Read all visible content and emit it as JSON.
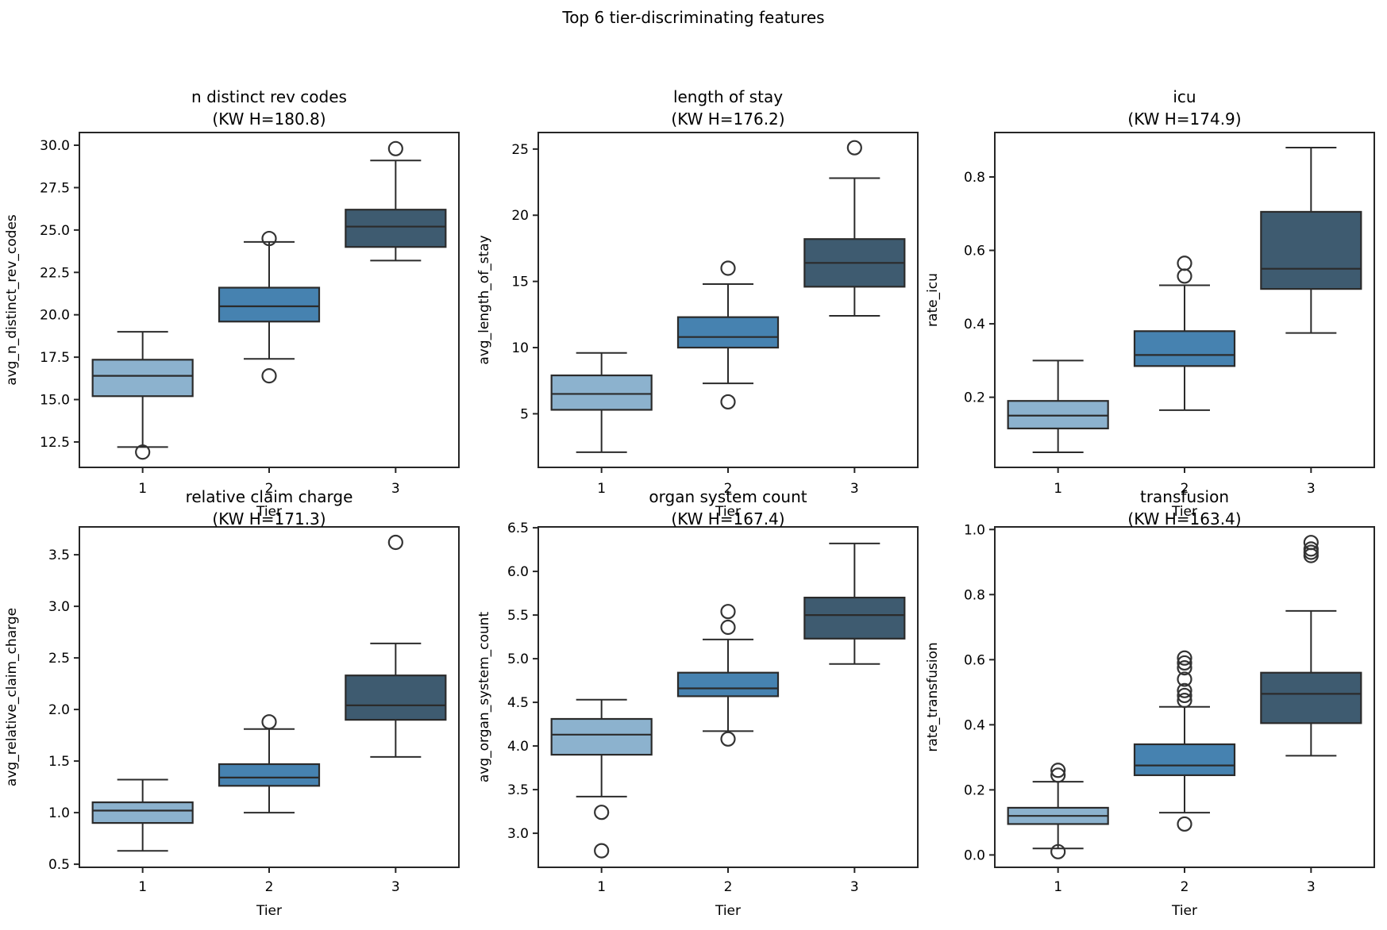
{
  "figure": {
    "title": "Top 6 tier-discriminating features"
  },
  "palette": {
    "tier_fill": [
      "#8cb2ce",
      "#4682b0",
      "#3e5b70"
    ],
    "box_edge": "#2b2b2b",
    "outlier_edge": "#333333",
    "spine": "#262626",
    "text": "#000000"
  },
  "chart_data": [
    {
      "type": "box",
      "title": "n distinct rev codes",
      "subtitle": "(KW H=180.8)",
      "kw_h": 180.8,
      "xlabel": "Tier",
      "ylabel": "avg_n_distinct_rev_codes",
      "categories": [
        "1",
        "2",
        "3"
      ],
      "ylim": [
        11.0,
        30.75
      ],
      "ytick_values": [
        12.5,
        15.0,
        17.5,
        20.0,
        22.5,
        25.0,
        27.5,
        30.0
      ],
      "ytick_labels": [
        "12.5",
        "15.0",
        "17.5",
        "20.0",
        "22.5",
        "25.0",
        "27.5",
        "30.0"
      ],
      "boxes": [
        {
          "tier": "1",
          "whisker_low": 12.2,
          "q1": 15.2,
          "median": 16.4,
          "q3": 17.35,
          "whisker_high": 19.0,
          "outliers": [
            11.9
          ]
        },
        {
          "tier": "2",
          "whisker_low": 17.4,
          "q1": 19.6,
          "median": 20.5,
          "q3": 21.6,
          "whisker_high": 24.3,
          "outliers": [
            16.4,
            24.5
          ]
        },
        {
          "tier": "3",
          "whisker_low": 23.2,
          "q1": 24.0,
          "median": 25.2,
          "q3": 26.2,
          "whisker_high": 29.1,
          "outliers": [
            29.8
          ]
        }
      ]
    },
    {
      "type": "box",
      "title": "length of stay",
      "subtitle": "(KW H=176.2)",
      "kw_h": 176.2,
      "xlabel": "Tier",
      "ylabel": "avg_length_of_stay",
      "categories": [
        "1",
        "2",
        "3"
      ],
      "ylim": [
        0.95,
        26.25
      ],
      "ytick_values": [
        5,
        10,
        15,
        20,
        25
      ],
      "ytick_labels": [
        "5",
        "10",
        "15",
        "20",
        "25"
      ],
      "boxes": [
        {
          "tier": "1",
          "whisker_low": 2.1,
          "q1": 5.3,
          "median": 6.5,
          "q3": 7.9,
          "whisker_high": 9.6,
          "outliers": []
        },
        {
          "tier": "2",
          "whisker_low": 7.3,
          "q1": 10.0,
          "median": 10.8,
          "q3": 12.3,
          "whisker_high": 14.8,
          "outliers": [
            5.9,
            16.0
          ]
        },
        {
          "tier": "3",
          "whisker_low": 12.4,
          "q1": 14.6,
          "median": 16.4,
          "q3": 18.2,
          "whisker_high": 22.8,
          "outliers": [
            25.1
          ]
        }
      ]
    },
    {
      "type": "box",
      "title": "icu",
      "subtitle": "(KW H=174.9)",
      "kw_h": 174.9,
      "xlabel": "Tier",
      "ylabel": "rate_icu",
      "categories": [
        "1",
        "2",
        "3"
      ],
      "ylim": [
        0.009,
        0.921
      ],
      "ytick_values": [
        0.2,
        0.4,
        0.6,
        0.8
      ],
      "ytick_labels": [
        "0.2",
        "0.4",
        "0.6",
        "0.8"
      ],
      "boxes": [
        {
          "tier": "1",
          "whisker_low": 0.05,
          "q1": 0.115,
          "median": 0.15,
          "q3": 0.19,
          "whisker_high": 0.3,
          "outliers": []
        },
        {
          "tier": "2",
          "whisker_low": 0.165,
          "q1": 0.285,
          "median": 0.315,
          "q3": 0.38,
          "whisker_high": 0.505,
          "outliers": [
            0.53,
            0.565
          ]
        },
        {
          "tier": "3",
          "whisker_low": 0.375,
          "q1": 0.495,
          "median": 0.55,
          "q3": 0.705,
          "whisker_high": 0.88,
          "outliers": []
        }
      ]
    },
    {
      "type": "box",
      "title": "relative claim charge",
      "subtitle": "(KW H=171.3)",
      "kw_h": 171.3,
      "xlabel": "Tier",
      "ylabel": "avg_relative_claim_charge",
      "categories": [
        "1",
        "2",
        "3"
      ],
      "ylim": [
        0.47,
        3.77
      ],
      "ytick_values": [
        0.5,
        1.0,
        1.5,
        2.0,
        2.5,
        3.0,
        3.5
      ],
      "ytick_labels": [
        "0.5",
        "1.0",
        "1.5",
        "2.0",
        "2.5",
        "3.0",
        "3.5"
      ],
      "boxes": [
        {
          "tier": "1",
          "whisker_low": 0.63,
          "q1": 0.9,
          "median": 1.02,
          "q3": 1.1,
          "whisker_high": 1.32,
          "outliers": []
        },
        {
          "tier": "2",
          "whisker_low": 1.0,
          "q1": 1.26,
          "median": 1.34,
          "q3": 1.47,
          "whisker_high": 1.81,
          "outliers": [
            1.88
          ]
        },
        {
          "tier": "3",
          "whisker_low": 1.54,
          "q1": 1.9,
          "median": 2.04,
          "q3": 2.33,
          "whisker_high": 2.64,
          "outliers": [
            3.62
          ]
        }
      ]
    },
    {
      "type": "box",
      "title": "organ system count",
      "subtitle": "(KW H=167.4)",
      "kw_h": 167.4,
      "xlabel": "Tier",
      "ylabel": "avg_organ_system_count",
      "categories": [
        "1",
        "2",
        "3"
      ],
      "ylim": [
        2.61,
        6.51
      ],
      "ytick_values": [
        3.0,
        3.5,
        4.0,
        4.5,
        5.0,
        5.5,
        6.0,
        6.5
      ],
      "ytick_labels": [
        "3.0",
        "3.5",
        "4.0",
        "4.5",
        "5.0",
        "5.5",
        "6.0",
        "6.5"
      ],
      "boxes": [
        {
          "tier": "1",
          "whisker_low": 3.42,
          "q1": 3.9,
          "median": 4.13,
          "q3": 4.31,
          "whisker_high": 4.53,
          "outliers": [
            2.8,
            3.24
          ]
        },
        {
          "tier": "2",
          "whisker_low": 4.17,
          "q1": 4.57,
          "median": 4.66,
          "q3": 4.84,
          "whisker_high": 5.22,
          "outliers": [
            4.08,
            5.36,
            5.54
          ]
        },
        {
          "tier": "3",
          "whisker_low": 4.94,
          "q1": 5.23,
          "median": 5.5,
          "q3": 5.7,
          "whisker_high": 6.32,
          "outliers": []
        }
      ]
    },
    {
      "type": "box",
      "title": "transfusion",
      "subtitle": "(KW H=163.4)",
      "kw_h": 163.4,
      "xlabel": "Tier",
      "ylabel": "rate_transfusion",
      "categories": [
        "1",
        "2",
        "3"
      ],
      "ylim": [
        -0.038,
        1.008
      ],
      "ytick_values": [
        0.0,
        0.2,
        0.4,
        0.6,
        0.8,
        1.0
      ],
      "ytick_labels": [
        "0.0",
        "0.2",
        "0.4",
        "0.6",
        "0.8",
        "1.0"
      ],
      "boxes": [
        {
          "tier": "1",
          "whisker_low": 0.02,
          "q1": 0.095,
          "median": 0.12,
          "q3": 0.145,
          "whisker_high": 0.225,
          "outliers": [
            0.01,
            0.245,
            0.26
          ]
        },
        {
          "tier": "2",
          "whisker_low": 0.13,
          "q1": 0.245,
          "median": 0.275,
          "q3": 0.34,
          "whisker_high": 0.455,
          "outliers": [
            0.095,
            0.475,
            0.49,
            0.505,
            0.54,
            0.575,
            0.59,
            0.605
          ]
        },
        {
          "tier": "3",
          "whisker_low": 0.305,
          "q1": 0.405,
          "median": 0.495,
          "q3": 0.56,
          "whisker_high": 0.75,
          "outliers": [
            0.92,
            0.93,
            0.94,
            0.96
          ]
        }
      ]
    }
  ]
}
